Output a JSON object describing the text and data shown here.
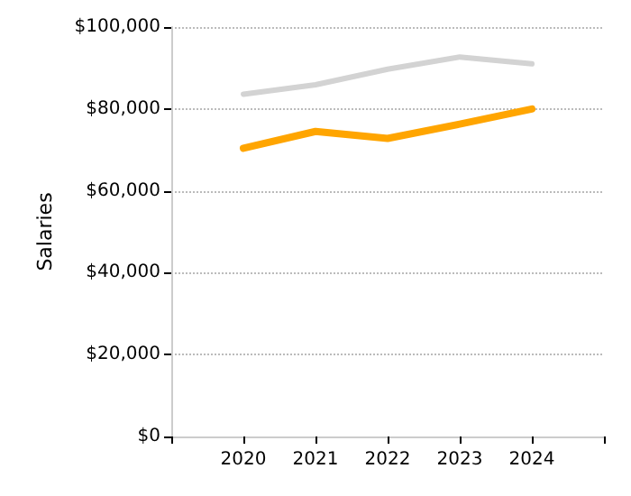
{
  "chart_data": {
    "type": "line",
    "ylabel": "Salaries",
    "x": [
      2020,
      2021,
      2022,
      2023,
      2024
    ],
    "series": [
      {
        "color": "#d3d3d3",
        "values": [
          83600,
          85900,
          89700,
          92700,
          91000
        ]
      },
      {
        "color": "#ffa500",
        "values": [
          70400,
          74500,
          72800,
          76300,
          80000
        ]
      }
    ],
    "xlim": [
      2019,
      2025
    ],
    "xticks": [
      {
        "value": 2019,
        "label": null
      },
      2020,
      2021,
      2022,
      2023,
      2024,
      {
        "value": 2025,
        "label": null
      }
    ],
    "ylim": [
      0,
      100000
    ],
    "yticks": [
      {
        "value": 0,
        "label": "$0"
      },
      {
        "value": 20000,
        "label": "$20,000"
      },
      {
        "value": 40000,
        "label": "$40,000"
      },
      {
        "value": 60000,
        "label": "$60,000"
      },
      {
        "value": 80000,
        "label": "$80,000"
      },
      {
        "value": 100000,
        "label": "$100,000"
      }
    ],
    "grid": "y",
    "marker": "none",
    "line_style": "solid"
  }
}
